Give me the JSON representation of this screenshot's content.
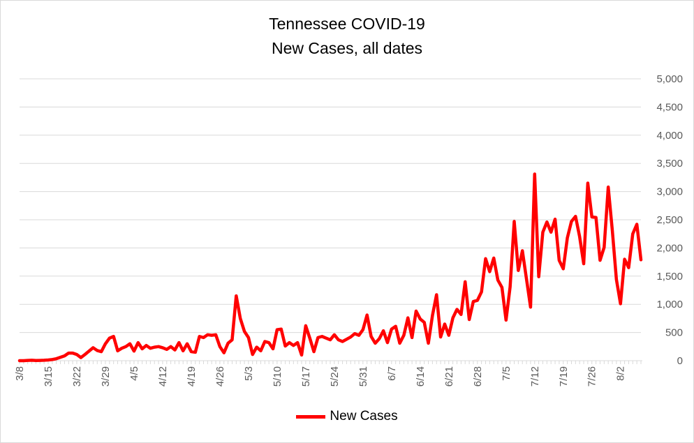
{
  "chart_data": {
    "type": "line",
    "title": "Tennessee COVID-19",
    "subtitle": "New Cases, all dates",
    "xlabel": "",
    "ylabel": "",
    "ylim": [
      0,
      5000
    ],
    "ytick_labels": [
      "0",
      "500",
      "1,000",
      "1,500",
      "2,000",
      "2,500",
      "3,000",
      "3,500",
      "4,000",
      "4,500",
      "5,000"
    ],
    "yaxis_side": "right",
    "xtick_labels": [
      "3/8",
      "3/15",
      "3/22",
      "3/29",
      "4/5",
      "4/12",
      "4/19",
      "4/26",
      "5/3",
      "5/10",
      "5/17",
      "5/24",
      "5/31",
      "6/7",
      "6/14",
      "6/21",
      "6/28",
      "7/5",
      "7/12",
      "7/19",
      "7/26",
      "8/2"
    ],
    "grid": true,
    "legend_position": "bottom",
    "color": "#ff0000",
    "series": [
      {
        "name": "New Cases",
        "x_start": "3/8",
        "values": [
          0,
          0,
          5,
          8,
          3,
          5,
          7,
          12,
          20,
          35,
          60,
          85,
          135,
          135,
          110,
          55,
          110,
          170,
          230,
          180,
          160,
          300,
          400,
          430,
          175,
          220,
          250,
          300,
          170,
          320,
          210,
          270,
          220,
          240,
          250,
          230,
          200,
          250,
          190,
          320,
          175,
          300,
          160,
          150,
          430,
          410,
          460,
          450,
          460,
          250,
          140,
          310,
          370,
          1150,
          750,
          520,
          410,
          110,
          240,
          175,
          340,
          320,
          210,
          550,
          560,
          260,
          320,
          270,
          320,
          100,
          620,
          400,
          160,
          410,
          430,
          400,
          370,
          460,
          370,
          340,
          380,
          420,
          480,
          450,
          550,
          810,
          430,
          310,
          390,
          530,
          320,
          560,
          610,
          310,
          450,
          760,
          410,
          880,
          740,
          680,
          310,
          800,
          1170,
          420,
          650,
          450,
          760,
          910,
          820,
          1400,
          730,
          1050,
          1070,
          1220,
          1810,
          1580,
          1820,
          1430,
          1300,
          720,
          1310,
          2470,
          1600,
          1950,
          1450,
          950,
          3310,
          1490,
          2280,
          2460,
          2280,
          2510,
          1780,
          1630,
          2180,
          2470,
          2560,
          2200,
          1720,
          3150,
          2550,
          2540,
          1780,
          2010,
          3080,
          2310,
          1440,
          1010,
          1800,
          1650,
          2250,
          2420,
          1790
        ]
      }
    ]
  }
}
